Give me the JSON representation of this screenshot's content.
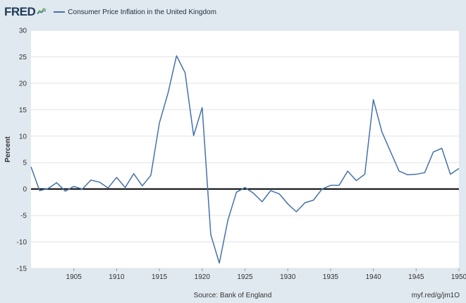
{
  "header": {
    "logo_text": "FRED",
    "logo_icon": "chart-line-icon",
    "legend_label": "Consumer Price Inflation in the United Kingdom",
    "series_color": "#4572a7"
  },
  "footer": {
    "source": "Source: Bank of England",
    "link": "myf.red/g/jm1O"
  },
  "chart_data": {
    "type": "line",
    "title": "",
    "xlabel": "",
    "ylabel": "Percent",
    "xlim": [
      1900,
      1950
    ],
    "ylim": [
      -15,
      30
    ],
    "x_ticks": [
      1905,
      1910,
      1915,
      1920,
      1925,
      1930,
      1935,
      1940,
      1945,
      1950
    ],
    "y_ticks": [
      30,
      25,
      20,
      15,
      10,
      5,
      0,
      -5,
      -10,
      -15
    ],
    "zero_line": true,
    "grid": "horizontal",
    "series": [
      {
        "name": "Consumer Price Inflation in the United Kingdom",
        "x": [
          1900,
          1901,
          1902,
          1903,
          1904,
          1905,
          1906,
          1907,
          1908,
          1909,
          1910,
          1911,
          1912,
          1913,
          1914,
          1915,
          1916,
          1917,
          1918,
          1919,
          1920,
          1921,
          1922,
          1923,
          1924,
          1925,
          1926,
          1927,
          1928,
          1929,
          1930,
          1931,
          1932,
          1933,
          1934,
          1935,
          1936,
          1937,
          1938,
          1939,
          1940,
          1941,
          1942,
          1943,
          1944,
          1945,
          1946,
          1947,
          1948,
          1949,
          1950
        ],
        "y": [
          4.2,
          -0.3,
          0.1,
          1.2,
          -0.4,
          0.5,
          0.0,
          1.7,
          1.3,
          0.2,
          2.2,
          0.3,
          2.9,
          0.6,
          2.6,
          12.5,
          18.1,
          25.2,
          22.0,
          10.1,
          15.4,
          -8.6,
          -14.0,
          -5.9,
          -0.6,
          0.3,
          -0.8,
          -2.4,
          -0.3,
          -0.9,
          -2.8,
          -4.3,
          -2.6,
          -2.1,
          0.0,
          0.7,
          0.7,
          3.4,
          1.6,
          2.8,
          16.9,
          10.8,
          7.1,
          3.4,
          2.7,
          2.8,
          3.1,
          7.0,
          7.7,
          2.8,
          3.9
        ]
      }
    ]
  }
}
